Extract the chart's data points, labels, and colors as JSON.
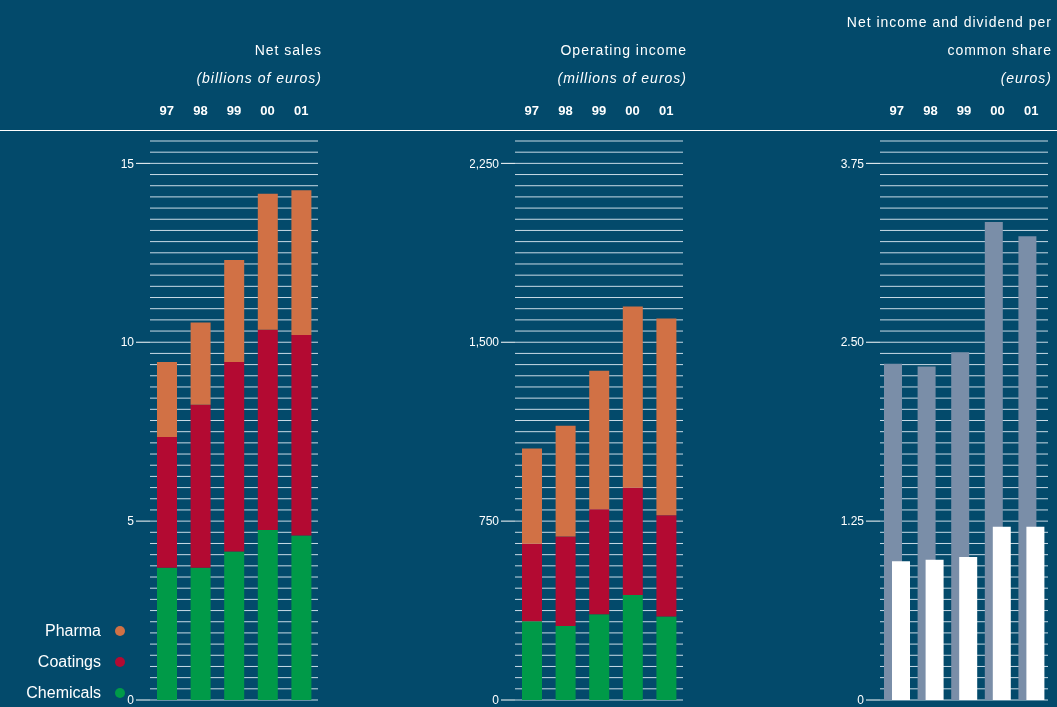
{
  "chart_data": [
    {
      "type": "bar",
      "title": "Net sales",
      "subtitle": "(billions of euros)",
      "categories": [
        "97",
        "98",
        "99",
        "00",
        "01"
      ],
      "stacked": true,
      "grid": "y",
      "legend": "bottom left",
      "series": [
        {
          "name": "Chemicals",
          "color": "#009a48",
          "values": [
            3.7,
            3.7,
            4.15,
            4.75,
            4.6
          ]
        },
        {
          "name": "Coatings",
          "color": "#b30a32",
          "values": [
            3.65,
            4.55,
            5.3,
            5.6,
            5.6
          ]
        },
        {
          "name": "Pharma",
          "color": "#d17145",
          "values": [
            2.1,
            2.3,
            2.85,
            3.8,
            4.05
          ]
        }
      ],
      "ylim": [
        0,
        15.625
      ],
      "yticks": [
        0,
        {
          "value": 0.3125,
          "label": null
        },
        {
          "value": 0.625,
          "label": null
        },
        {
          "value": 0.9375,
          "label": null
        },
        {
          "value": 1.25,
          "label": null
        },
        {
          "value": 1.5625,
          "label": null
        },
        {
          "value": 1.875,
          "label": null
        },
        {
          "value": 2.1875,
          "label": null
        },
        {
          "value": 2.5,
          "label": null
        },
        {
          "value": 2.8125,
          "label": null
        },
        {
          "value": 3.125,
          "label": null
        },
        {
          "value": 3.4375,
          "label": null
        },
        {
          "value": 3.75,
          "label": null
        },
        {
          "value": 4.0625,
          "label": null
        },
        {
          "value": 4.375,
          "label": null
        },
        {
          "value": 4.6875,
          "label": null
        },
        5,
        {
          "value": 5.3125,
          "label": null
        },
        {
          "value": 5.625,
          "label": null
        },
        {
          "value": 5.9375,
          "label": null
        },
        {
          "value": 6.25,
          "label": null
        },
        {
          "value": 6.5625,
          "label": null
        },
        {
          "value": 6.875,
          "label": null
        },
        {
          "value": 7.1875,
          "label": null
        },
        {
          "value": 7.5,
          "label": null
        },
        {
          "value": 7.8125,
          "label": null
        },
        {
          "value": 8.125,
          "label": null
        },
        {
          "value": 8.4375,
          "label": null
        },
        {
          "value": 8.75,
          "label": null
        },
        {
          "value": 9.0625,
          "label": null
        },
        {
          "value": 9.375,
          "label": null
        },
        {
          "value": 9.6875,
          "label": null
        },
        10,
        {
          "value": 10.3125,
          "label": null
        },
        {
          "value": 10.625,
          "label": null
        },
        {
          "value": 10.9375,
          "label": null
        },
        {
          "value": 11.25,
          "label": null
        },
        {
          "value": 11.5625,
          "label": null
        },
        {
          "value": 11.875,
          "label": null
        },
        {
          "value": 12.1875,
          "label": null
        },
        {
          "value": 12.5,
          "label": null
        },
        {
          "value": 12.8125,
          "label": null
        },
        {
          "value": 13.125,
          "label": null
        },
        {
          "value": 13.4375,
          "label": null
        },
        {
          "value": 13.75,
          "label": null
        },
        {
          "value": 14.0625,
          "label": null
        },
        {
          "value": 14.375,
          "label": null
        },
        {
          "value": 14.6875,
          "label": null
        },
        15,
        {
          "value": 15.3125,
          "label": null
        },
        {
          "value": 15.625,
          "label": null
        }
      ]
    },
    {
      "type": "bar",
      "title": "Operating income",
      "subtitle": "(millions of euros)",
      "categories": [
        "97",
        "98",
        "99",
        "00",
        "01"
      ],
      "stacked": true,
      "grid": "y",
      "series": [
        {
          "color": "#009a48",
          "values": [
            330,
            310,
            360,
            440,
            350
          ]
        },
        {
          "color": "#b30a32",
          "values": [
            325,
            375,
            440,
            450,
            425
          ]
        },
        {
          "color": "#d17145",
          "values": [
            400,
            465,
            580,
            760,
            825
          ]
        }
      ],
      "ylim": [
        0,
        2343.75
      ],
      "yticks": [
        0,
        {
          "value": 46.875,
          "label": null
        },
        {
          "value": 93.75,
          "label": null
        },
        {
          "value": 140.625,
          "label": null
        },
        {
          "value": 187.5,
          "label": null
        },
        {
          "value": 234.375,
          "label": null
        },
        {
          "value": 281.25,
          "label": null
        },
        {
          "value": 328.125,
          "label": null
        },
        {
          "value": 375,
          "label": null
        },
        {
          "value": 421.875,
          "label": null
        },
        {
          "value": 468.75,
          "label": null
        },
        {
          "value": 515.625,
          "label": null
        },
        {
          "value": 562.5,
          "label": null
        },
        {
          "value": 609.375,
          "label": null
        },
        {
          "value": 656.25,
          "label": null
        },
        {
          "value": 703.125,
          "label": null
        },
        750,
        {
          "value": 796.875,
          "label": null
        },
        {
          "value": 843.75,
          "label": null
        },
        {
          "value": 890.625,
          "label": null
        },
        {
          "value": 937.5,
          "label": null
        },
        {
          "value": 984.375,
          "label": null
        },
        {
          "value": 1031.25,
          "label": null
        },
        {
          "value": 1078.125,
          "label": null
        },
        {
          "value": 1125,
          "label": null
        },
        {
          "value": 1171.875,
          "label": null
        },
        {
          "value": 1218.75,
          "label": null
        },
        {
          "value": 1265.625,
          "label": null
        },
        {
          "value": 1312.5,
          "label": null
        },
        {
          "value": 1359.375,
          "label": null
        },
        {
          "value": 1406.25,
          "label": null
        },
        {
          "value": 1453.125,
          "label": null
        },
        {
          "value": 1500,
          "label": "1,500"
        },
        {
          "value": 1546.875,
          "label": null
        },
        {
          "value": 1593.75,
          "label": null
        },
        {
          "value": 1640.625,
          "label": null
        },
        {
          "value": 1687.5,
          "label": null
        },
        {
          "value": 1734.375,
          "label": null
        },
        {
          "value": 1781.25,
          "label": null
        },
        {
          "value": 1828.125,
          "label": null
        },
        {
          "value": 1875,
          "label": null
        },
        {
          "value": 1921.875,
          "label": null
        },
        {
          "value": 1968.75,
          "label": null
        },
        {
          "value": 2015.625,
          "label": null
        },
        {
          "value": 2062.5,
          "label": null
        },
        {
          "value": 2109.375,
          "label": null
        },
        {
          "value": 2156.25,
          "label": null
        },
        {
          "value": 2203.125,
          "label": null
        },
        {
          "value": 2250,
          "label": "2,250"
        },
        {
          "value": 2296.875,
          "label": null
        },
        {
          "value": 2343.75,
          "label": null
        }
      ]
    },
    {
      "type": "bar",
      "title": "Net income and dividend per common share",
      "subtitle": "(euros)",
      "categories": [
        "97",
        "98",
        "99",
        "00",
        "01"
      ],
      "grid": "y",
      "series": [
        {
          "color": "#7a8ea8",
          "values": [
            2.35,
            2.33,
            2.43,
            3.34,
            3.24
          ]
        },
        {
          "color": "#ffffff",
          "values": [
            0.97,
            0.98,
            1.0,
            1.21,
            1.21
          ]
        }
      ],
      "ylim": [
        0,
        3.90625
      ],
      "yticks": [
        0,
        {
          "value": 0.078125,
          "label": null
        },
        {
          "value": 0.15625,
          "label": null
        },
        {
          "value": 0.234375,
          "label": null
        },
        {
          "value": 0.3125,
          "label": null
        },
        {
          "value": 0.390625,
          "label": null
        },
        {
          "value": 0.46875,
          "label": null
        },
        {
          "value": 0.546875,
          "label": null
        },
        {
          "value": 0.625,
          "label": null
        },
        {
          "value": 0.703125,
          "label": null
        },
        {
          "value": 0.78125,
          "label": null
        },
        {
          "value": 0.859375,
          "label": null
        },
        {
          "value": 0.9375,
          "label": null
        },
        {
          "value": 1.015625,
          "label": null
        },
        {
          "value": 1.09375,
          "label": null
        },
        {
          "value": 1.171875,
          "label": null
        },
        1.25,
        {
          "value": 1.328125,
          "label": null
        },
        {
          "value": 1.40625,
          "label": null
        },
        {
          "value": 1.484375,
          "label": null
        },
        {
          "value": 1.5625,
          "label": null
        },
        {
          "value": 1.640625,
          "label": null
        },
        {
          "value": 1.71875,
          "label": null
        },
        {
          "value": 1.796875,
          "label": null
        },
        {
          "value": 1.875,
          "label": null
        },
        {
          "value": 1.953125,
          "label": null
        },
        {
          "value": 2.03125,
          "label": null
        },
        {
          "value": 2.109375,
          "label": null
        },
        {
          "value": 2.1875,
          "label": null
        },
        {
          "value": 2.265625,
          "label": null
        },
        {
          "value": 2.34375,
          "label": null
        },
        {
          "value": 2.421875,
          "label": null
        },
        {
          "value": 2.5,
          "label": "2.50"
        },
        {
          "value": 2.578125,
          "label": null
        },
        {
          "value": 2.65625,
          "label": null
        },
        {
          "value": 2.734375,
          "label": null
        },
        {
          "value": 2.8125,
          "label": null
        },
        {
          "value": 2.890625,
          "label": null
        },
        {
          "value": 2.96875,
          "label": null
        },
        {
          "value": 3.046875,
          "label": null
        },
        {
          "value": 3.125,
          "label": null
        },
        {
          "value": 3.203125,
          "label": null
        },
        {
          "value": 3.28125,
          "label": null
        },
        {
          "value": 3.359375,
          "label": null
        },
        {
          "value": 3.4375,
          "label": null
        },
        {
          "value": 3.515625,
          "label": null
        },
        {
          "value": 3.59375,
          "label": null
        },
        {
          "value": 3.671875,
          "label": null
        },
        3.75,
        {
          "value": 3.828125,
          "label": null
        },
        {
          "value": 3.90625,
          "label": null
        }
      ]
    }
  ]
}
